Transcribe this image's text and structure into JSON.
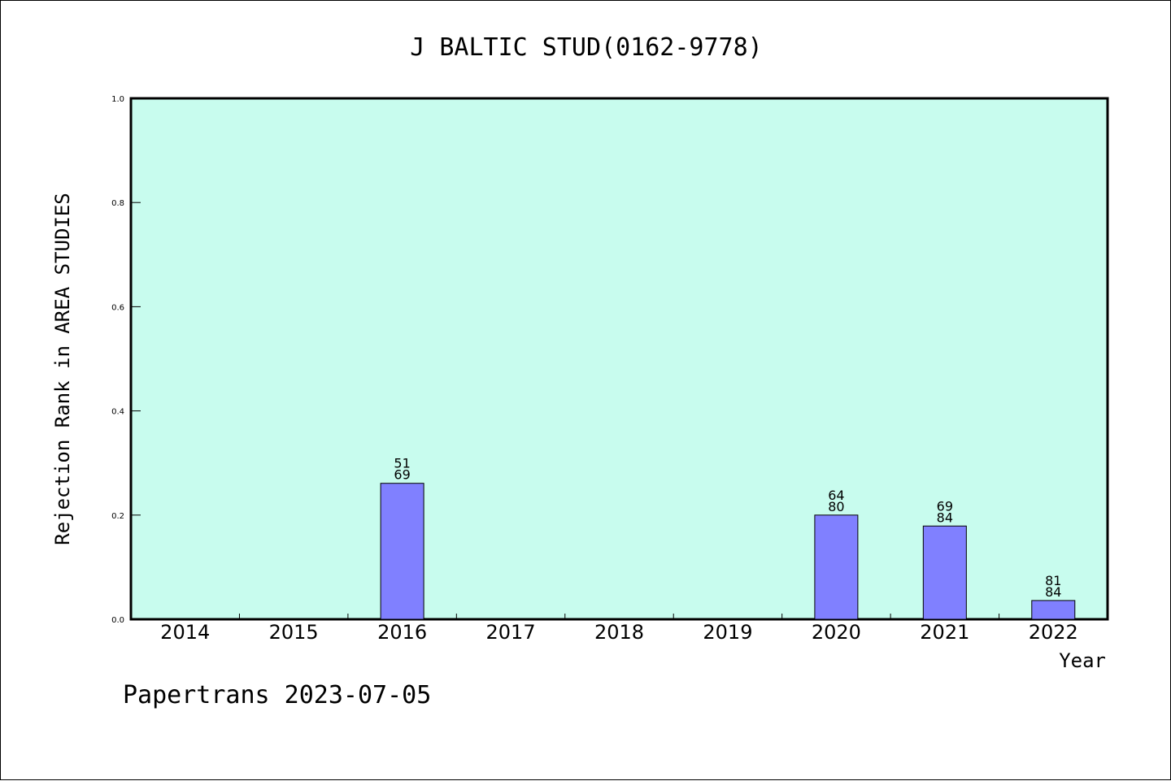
{
  "footer": {
    "text": "Papertrans 2023-07-05"
  },
  "colors": {
    "plot_background": "#c8fcee",
    "bar_fill": "#8080ff",
    "bar_stroke": "#000000",
    "axis": "#000000"
  },
  "chart_data": {
    "type": "bar",
    "title": "J BALTIC STUD(0162-9778)",
    "xlabel": "Year",
    "ylabel": "Rejection Rank in AREA STUDIES",
    "ylim": [
      0,
      1.0
    ],
    "yticks": [
      "0.0",
      "0.2",
      "0.4",
      "0.6",
      "0.8",
      "1.0"
    ],
    "categories": [
      "2014",
      "2015",
      "2016",
      "2017",
      "2018",
      "2019",
      "2020",
      "2021",
      "2022"
    ],
    "values": [
      0,
      0,
      0.261,
      0,
      0,
      0,
      0.2,
      0.179,
      0.036
    ],
    "labels_top": [
      "",
      "",
      "51",
      "",
      "",
      "",
      "64",
      "69",
      "81"
    ],
    "labels_bottom": [
      "",
      "",
      "69",
      "",
      "",
      "",
      "80",
      "84",
      "84"
    ],
    "grid": false,
    "legend": "none"
  }
}
